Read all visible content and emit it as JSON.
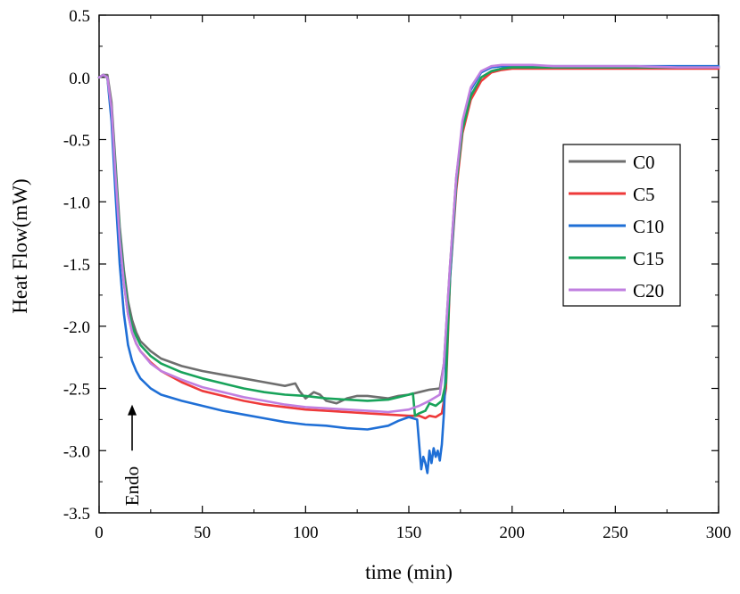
{
  "chart_data": {
    "type": "line",
    "title": "",
    "xlabel": "time (min)",
    "ylabel": "Heat Flow(mW)",
    "xlim": [
      0,
      300
    ],
    "ylim": [
      -3.5,
      0.5
    ],
    "xticks": [
      0,
      50,
      100,
      150,
      200,
      250,
      300
    ],
    "xtick_labels": [
      "0",
      "50",
      "100",
      "150",
      "200",
      "250",
      "300"
    ],
    "yticks": [
      0.5,
      0.0,
      -0.5,
      -1.0,
      -1.5,
      -2.0,
      -2.5,
      -3.0,
      -3.5
    ],
    "ytick_labels": [
      "0.5",
      "0.0",
      "-0.5",
      "-1.0",
      "-1.5",
      "-2.0",
      "-2.5",
      "-3.0",
      "-3.5"
    ],
    "grid": false,
    "legend_position": "right",
    "annotation": {
      "text": "Endo",
      "x": 16,
      "arrow_from_y": -3.0,
      "arrow_to_y": -2.63
    },
    "series": [
      {
        "name": "C0",
        "color": "#6e6e6e",
        "x": [
          0,
          2,
          4,
          6,
          8,
          10,
          12,
          14,
          16,
          18,
          20,
          25,
          30,
          40,
          50,
          60,
          70,
          80,
          90,
          95,
          97,
          100,
          104,
          107,
          110,
          115,
          120,
          125,
          130,
          135,
          140,
          145,
          150,
          155,
          160,
          165,
          167,
          170,
          173,
          176,
          180,
          185,
          190,
          195,
          200,
          220,
          240,
          260,
          280,
          300
        ],
        "values": [
          0.0,
          0.02,
          0.02,
          -0.2,
          -0.7,
          -1.2,
          -1.55,
          -1.8,
          -1.95,
          -2.05,
          -2.12,
          -2.2,
          -2.26,
          -2.32,
          -2.36,
          -2.39,
          -2.42,
          -2.45,
          -2.48,
          -2.46,
          -2.52,
          -2.58,
          -2.53,
          -2.55,
          -2.6,
          -2.62,
          -2.58,
          -2.56,
          -2.56,
          -2.57,
          -2.58,
          -2.56,
          -2.55,
          -2.53,
          -2.51,
          -2.5,
          -2.3,
          -1.5,
          -0.8,
          -0.4,
          -0.15,
          0.0,
          0.05,
          0.07,
          0.08,
          0.08,
          0.08,
          0.08,
          0.08,
          0.08
        ]
      },
      {
        "name": "C5",
        "color": "#ee3a3a",
        "x": [
          0,
          2,
          4,
          6,
          8,
          10,
          12,
          14,
          16,
          18,
          20,
          25,
          30,
          40,
          50,
          60,
          70,
          80,
          90,
          100,
          110,
          120,
          130,
          140,
          150,
          155,
          158,
          160,
          163,
          166,
          168,
          170,
          173,
          176,
          180,
          185,
          190,
          195,
          200,
          220,
          240,
          260,
          280,
          300
        ],
        "values": [
          0.0,
          0.02,
          0.0,
          -0.25,
          -0.8,
          -1.3,
          -1.65,
          -1.9,
          -2.05,
          -2.14,
          -2.2,
          -2.29,
          -2.36,
          -2.45,
          -2.52,
          -2.56,
          -2.6,
          -2.63,
          -2.65,
          -2.67,
          -2.68,
          -2.69,
          -2.7,
          -2.71,
          -2.72,
          -2.72,
          -2.74,
          -2.72,
          -2.73,
          -2.7,
          -2.5,
          -1.6,
          -0.9,
          -0.45,
          -0.18,
          -0.03,
          0.04,
          0.06,
          0.07,
          0.07,
          0.07,
          0.07,
          0.07,
          0.07
        ]
      },
      {
        "name": "C10",
        "color": "#1f6fd6",
        "x": [
          0,
          2,
          4,
          6,
          8,
          10,
          12,
          14,
          16,
          18,
          20,
          25,
          30,
          40,
          50,
          60,
          70,
          80,
          90,
          100,
          110,
          120,
          130,
          140,
          145,
          150,
          154,
          156,
          157,
          158,
          159,
          160,
          161,
          162,
          163,
          164,
          165,
          166,
          167,
          168,
          170,
          173,
          176,
          180,
          185,
          190,
          195,
          200,
          220,
          240,
          260,
          280,
          300
        ],
        "values": [
          0.0,
          0.02,
          0.0,
          -0.35,
          -0.95,
          -1.5,
          -1.9,
          -2.15,
          -2.28,
          -2.36,
          -2.42,
          -2.5,
          -2.55,
          -2.6,
          -2.64,
          -2.68,
          -2.71,
          -2.74,
          -2.77,
          -2.79,
          -2.8,
          -2.82,
          -2.83,
          -2.8,
          -2.76,
          -2.73,
          -2.75,
          -3.15,
          -3.05,
          -3.1,
          -3.18,
          -3.0,
          -3.1,
          -2.98,
          -3.05,
          -3.0,
          -3.08,
          -2.95,
          -2.7,
          -2.3,
          -1.6,
          -0.85,
          -0.38,
          -0.1,
          0.04,
          0.08,
          0.09,
          0.09,
          0.09,
          0.09,
          0.09,
          0.09,
          0.09
        ]
      },
      {
        "name": "C15",
        "color": "#18a35a",
        "x": [
          0,
          2,
          4,
          6,
          8,
          10,
          12,
          14,
          16,
          18,
          20,
          25,
          30,
          40,
          50,
          60,
          70,
          80,
          90,
          100,
          110,
          120,
          130,
          140,
          145,
          150,
          152,
          153,
          155,
          158,
          160,
          163,
          166,
          168,
          170,
          173,
          176,
          180,
          185,
          190,
          195,
          200,
          220,
          240,
          260,
          280,
          300
        ],
        "values": [
          0.0,
          0.02,
          0.0,
          -0.25,
          -0.75,
          -1.25,
          -1.6,
          -1.85,
          -2.0,
          -2.08,
          -2.15,
          -2.24,
          -2.3,
          -2.37,
          -2.42,
          -2.46,
          -2.5,
          -2.53,
          -2.55,
          -2.56,
          -2.58,
          -2.59,
          -2.6,
          -2.59,
          -2.57,
          -2.55,
          -2.54,
          -2.72,
          -2.7,
          -2.68,
          -2.62,
          -2.64,
          -2.6,
          -2.45,
          -1.55,
          -0.85,
          -0.42,
          -0.15,
          0.0,
          0.05,
          0.07,
          0.08,
          0.08,
          0.08,
          0.08,
          0.08,
          0.08
        ]
      },
      {
        "name": "C20",
        "color": "#c07fe0",
        "x": [
          0,
          2,
          4,
          6,
          8,
          10,
          12,
          14,
          16,
          18,
          20,
          25,
          30,
          40,
          50,
          60,
          70,
          80,
          90,
          100,
          110,
          120,
          130,
          140,
          150,
          155,
          160,
          165,
          167,
          170,
          173,
          176,
          180,
          185,
          190,
          195,
          200,
          210,
          220,
          240,
          260,
          280,
          300
        ],
        "values": [
          0.0,
          0.02,
          0.0,
          -0.25,
          -0.8,
          -1.3,
          -1.65,
          -1.9,
          -2.05,
          -2.14,
          -2.2,
          -2.3,
          -2.36,
          -2.43,
          -2.49,
          -2.53,
          -2.57,
          -2.6,
          -2.63,
          -2.65,
          -2.66,
          -2.67,
          -2.68,
          -2.69,
          -2.67,
          -2.64,
          -2.6,
          -2.55,
          -2.3,
          -1.5,
          -0.8,
          -0.35,
          -0.08,
          0.05,
          0.09,
          0.1,
          0.1,
          0.1,
          0.09,
          0.09,
          0.09,
          0.08,
          0.08
        ]
      }
    ]
  }
}
